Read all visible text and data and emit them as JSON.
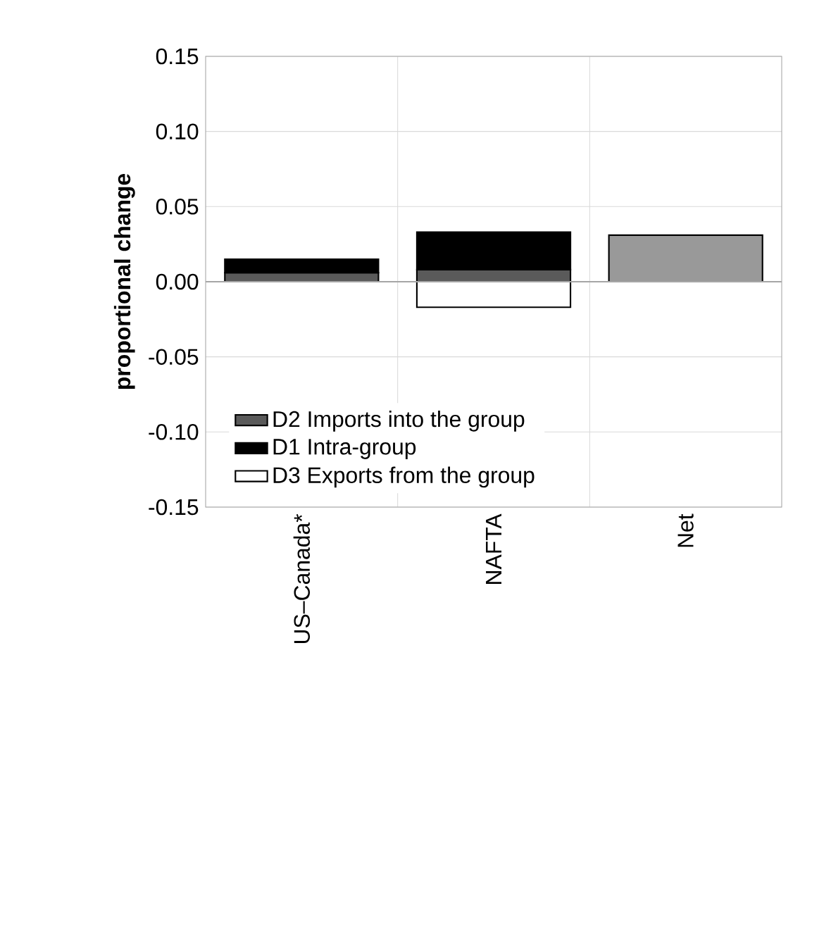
{
  "chart_data": {
    "type": "bar",
    "stacked": true,
    "ylabel": "**proportional change**",
    "categories": [
      "US–Canada*",
      "NAFTA",
      "Net"
    ],
    "series": [
      {
        "name": "D2 Imports into the group",
        "color": "#5a5a5a",
        "values": [
          0.006,
          0.008,
          null
        ]
      },
      {
        "name": "D1 Intra-group",
        "color": "#000000",
        "values": [
          0.009,
          0.025,
          null
        ]
      },
      {
        "name": "D3 Exports from the group",
        "color": "#ffffff",
        "values": [
          null,
          -0.017,
          null
        ]
      },
      {
        "color": "#999999",
        "values": [
          null,
          null,
          0.031
        ]
      }
    ],
    "ylim": [
      -0.15,
      0.15
    ],
    "yticks": [
      {
        "value": -0.15,
        "label": "-0.15"
      },
      {
        "value": -0.1,
        "label": "-0.10"
      },
      {
        "value": -0.05,
        "label": "-0.05"
      },
      {
        "value": 0,
        "label": "0.00"
      },
      {
        "value": 0.05,
        "label": "0.05"
      },
      {
        "value": 0.1,
        "label": "0.10"
      },
      {
        "value": 0.15,
        "label": "0.15"
      }
    ],
    "grid": true,
    "legend": "bottom left"
  }
}
